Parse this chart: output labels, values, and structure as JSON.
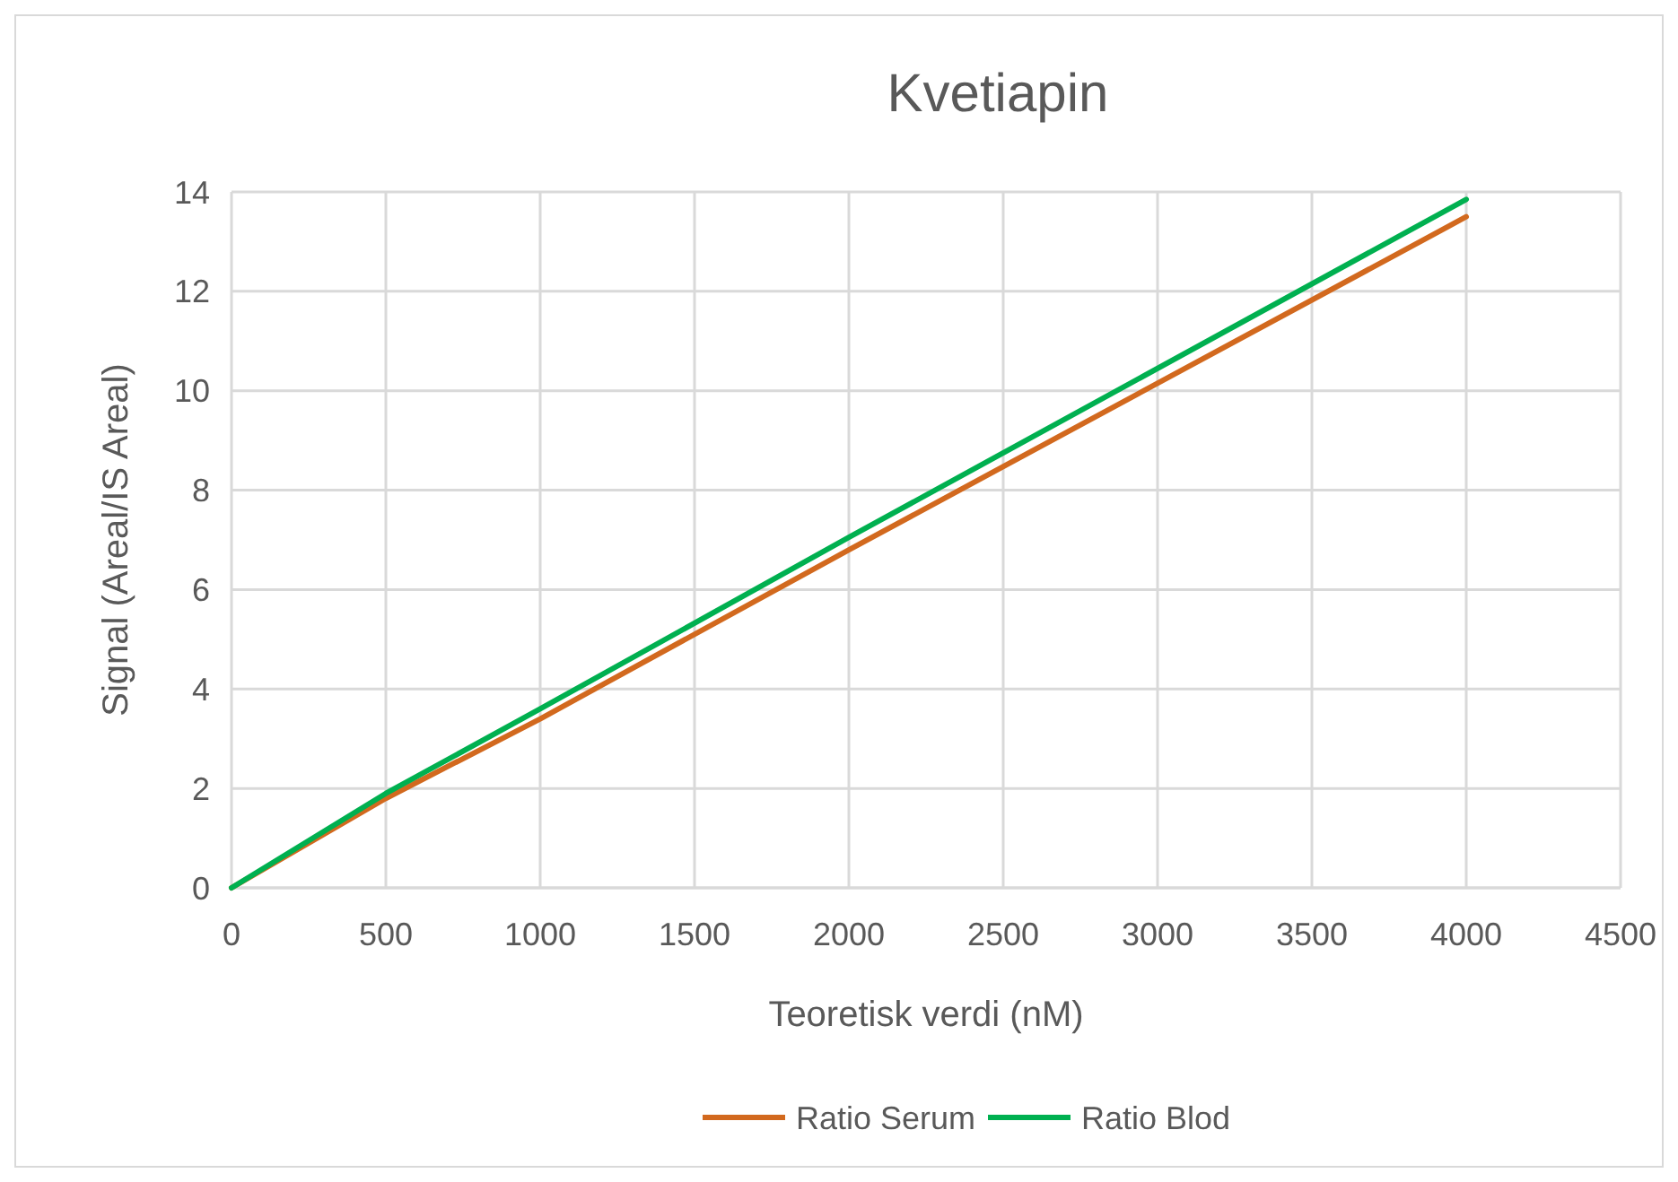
{
  "chart_data": {
    "type": "line",
    "title": "Kvetiapin",
    "xlabel": "Teoretisk verdi (nM)",
    "ylabel": "Signal (Areal/IS Areal)",
    "x": [
      0,
      500,
      1000,
      2000,
      4000
    ],
    "series": [
      {
        "name": "Ratio Serum",
        "color": "#d2691e",
        "values": [
          0,
          1.8,
          3.4,
          6.8,
          13.5
        ]
      },
      {
        "name": "Ratio Blod",
        "color": "#00b050",
        "values": [
          0,
          1.9,
          3.6,
          7.05,
          13.85
        ]
      }
    ],
    "xlim": [
      0,
      4500
    ],
    "xticks": [
      0,
      500,
      1000,
      1500,
      2000,
      2500,
      3000,
      3500,
      4000,
      4500
    ],
    "ylim": [
      0,
      14
    ],
    "yticks": [
      0,
      2,
      4,
      6,
      8,
      10,
      12,
      14
    ],
    "grid": true,
    "legend": "bottom",
    "marker": "none",
    "line_style": "solid"
  }
}
